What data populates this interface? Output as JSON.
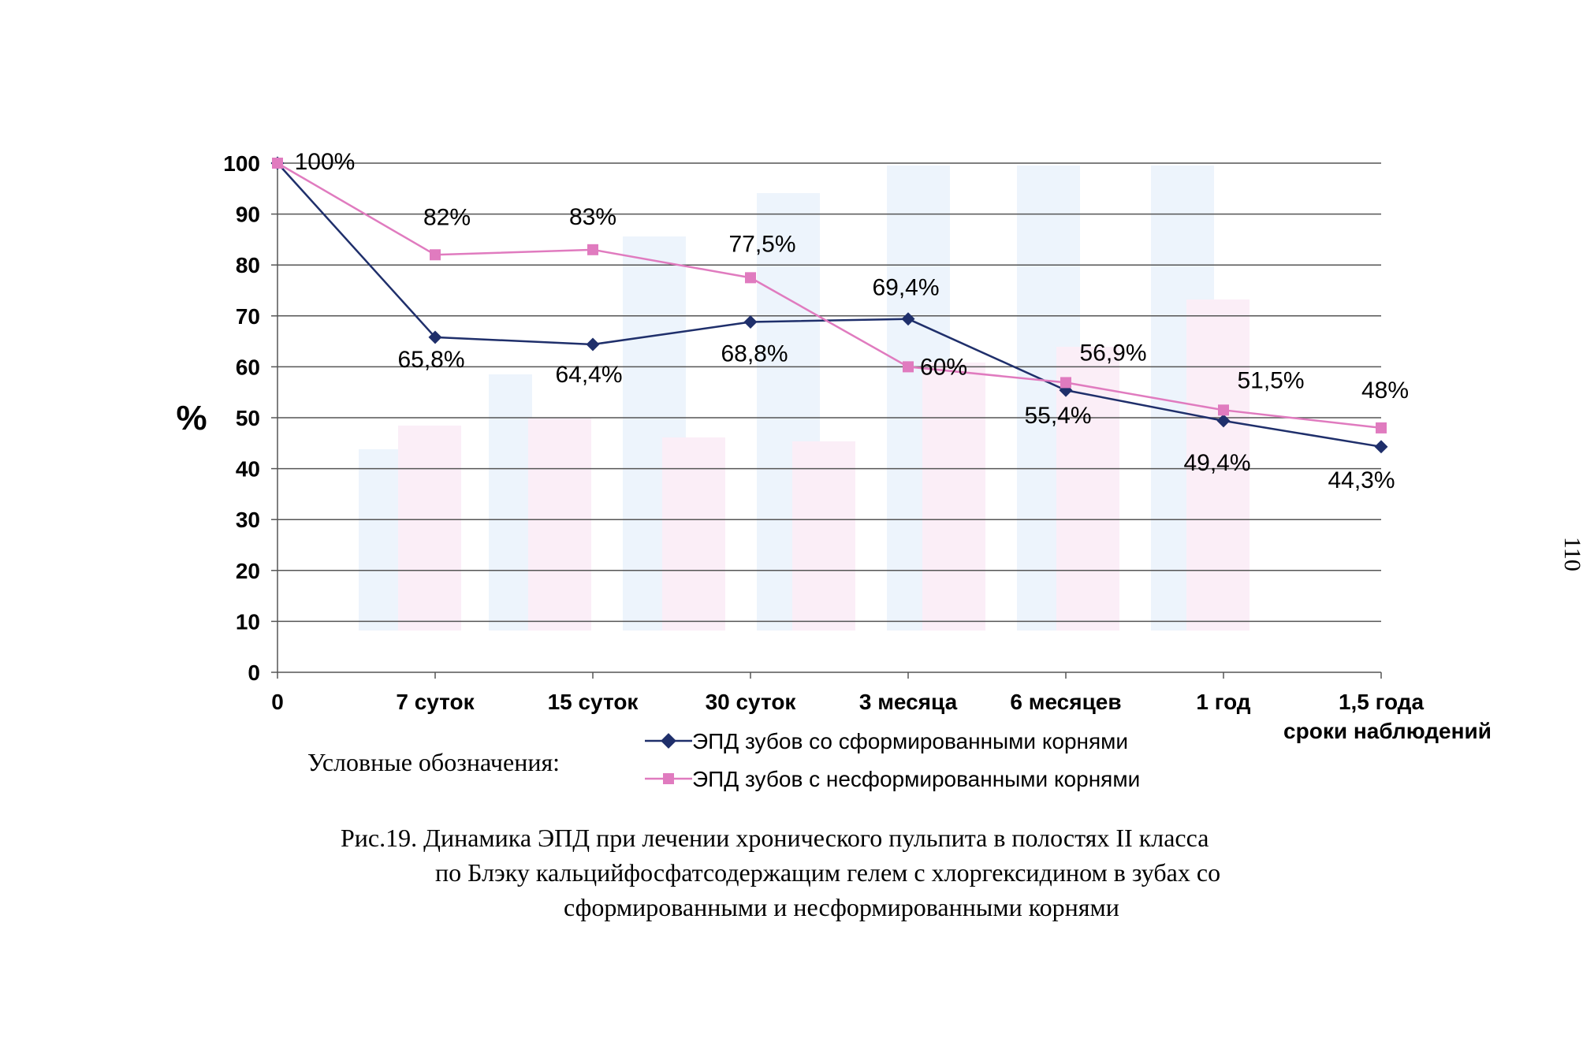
{
  "page_number": "110",
  "chart_data": {
    "type": "line",
    "ylabel": "%",
    "xlabel": "сроки наблюдений",
    "ylim": [
      0,
      100
    ],
    "yticks": [
      0,
      10,
      20,
      30,
      40,
      50,
      60,
      70,
      80,
      90,
      100
    ],
    "grid": true,
    "categories": [
      "0",
      "7 суток",
      "15 суток",
      "30 суток",
      "3 месяца",
      "6 месяцев",
      "1 год",
      "1,5 года"
    ],
    "series": [
      {
        "name": "ЭПД зубов со сформированными корнями",
        "color": "#1f2f6b",
        "marker": "diamond",
        "values": [
          100,
          65.8,
          64.4,
          68.8,
          69.4,
          55.4,
          49.4,
          44.3
        ],
        "labels": [
          "",
          "65,8%",
          "64,4%",
          "68,8%",
          "69,4%",
          "55,4%",
          "49,4%",
          "44,3%"
        ]
      },
      {
        "name": "ЭПД зубов с несформированными корнями",
        "color": "#e07bbf",
        "marker": "square",
        "values": [
          100,
          82,
          83,
          77.5,
          60,
          56.9,
          51.5,
          48
        ],
        "labels": [
          "100%",
          "82%",
          "83%",
          "77,5%",
          "60%",
          "56,9%",
          "51,5%",
          "48%"
        ]
      }
    ]
  },
  "legend": {
    "title": "Условные обозначения:",
    "items": [
      "ЭПД зубов со сформированными корнями",
      "ЭПД зубов с несформированными корнями"
    ]
  },
  "caption": {
    "line1": "Рис.19. Динамика ЭПД при лечении хронического пульпита в полостях II класса",
    "line2": "по Блэку кальцийфосфатсодержащим гелем с хлоргексидином в зубах со",
    "line3": "сформированными и несформированными корнями"
  }
}
